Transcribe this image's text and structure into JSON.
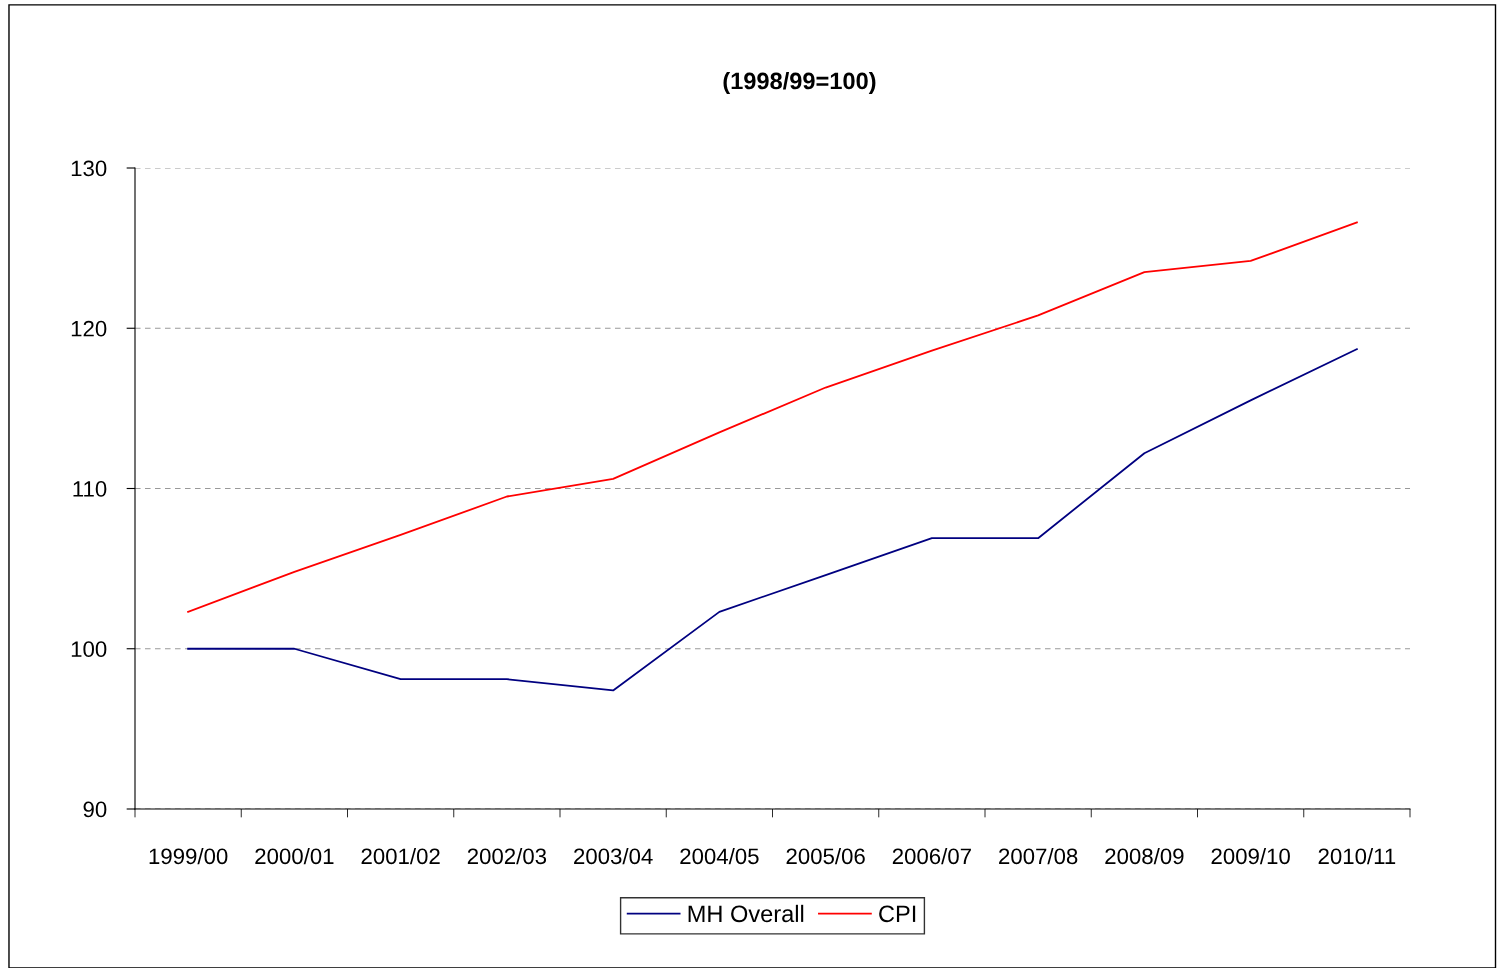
{
  "chart_data": {
    "type": "line",
    "title": "(1998/99=100)",
    "categories": [
      "1999/00",
      "2000/01",
      "2001/02",
      "2002/03",
      "2003/04",
      "2004/05",
      "2005/06",
      "2006/07",
      "2007/08",
      "2008/09",
      "2009/10",
      "2010/11"
    ],
    "series": [
      {
        "name": "MH Overall",
        "color": "#000080",
        "values": [
          100,
          100,
          98.1,
          98.1,
          97.4,
          102.3,
          104.6,
          106.9,
          106.9,
          112.2,
          115.5,
          118.7
        ]
      },
      {
        "name": "CPI",
        "color": "#ff0000",
        "values": [
          102.3,
          104.8,
          107.1,
          109.5,
          110.6,
          113.5,
          116.3,
          118.6,
          120.8,
          123.5,
          124.2,
          126.6
        ]
      }
    ],
    "ylim": [
      90,
      130
    ],
    "yticks": [
      90,
      100,
      110,
      120,
      130
    ],
    "grid": "y",
    "legend": "bottom",
    "marker": "none",
    "line_style": "solid"
  }
}
